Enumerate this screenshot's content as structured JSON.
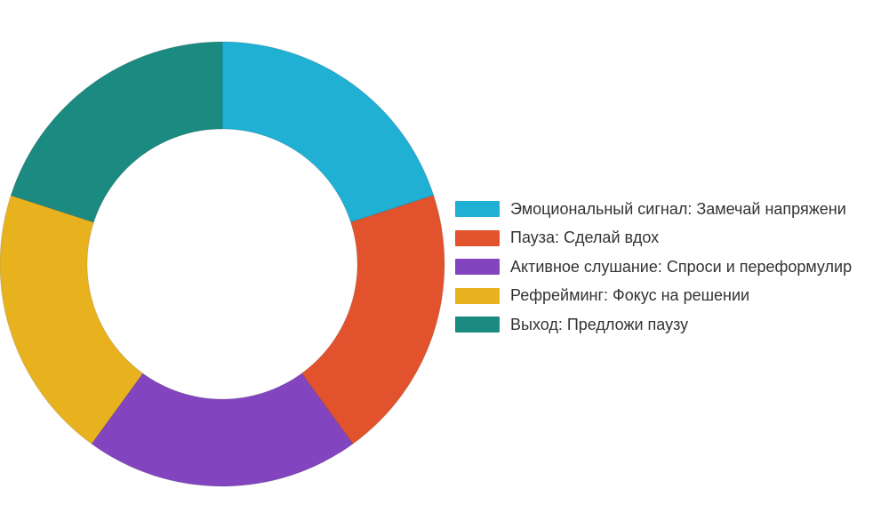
{
  "chart_data": {
    "type": "pie",
    "variant": "donut",
    "categories": [
      "Эмоциональный сигнал: Замечай напряжени",
      "Пауза: Сделай вдох",
      "Активное слушание: Спроси и переформулир",
      "Рефрейминг: Фокус на решении",
      "Выход: Предложи паузу"
    ],
    "values": [
      20,
      20,
      20,
      20,
      20
    ],
    "colors": [
      "#1fb0d3",
      "#e2532d",
      "#8345bf",
      "#e8b21f",
      "#1b8a80"
    ],
    "legend_position": "right"
  }
}
